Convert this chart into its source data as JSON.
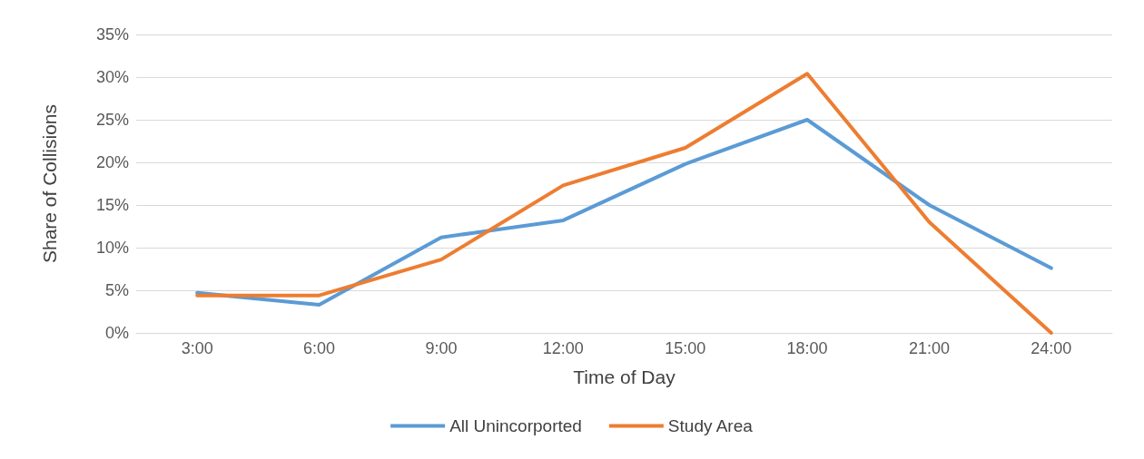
{
  "chart_data": {
    "type": "line",
    "xlabel": "Time of Day",
    "ylabel": "Share of Collisions",
    "categories": [
      "3:00",
      "6:00",
      "9:00",
      "12:00",
      "15:00",
      "18:00",
      "21:00",
      "24:00"
    ],
    "series": [
      {
        "name": "All Unincorported",
        "color": "#5b9bd5",
        "values": [
          4.7,
          3.3,
          11.2,
          13.2,
          19.8,
          25.0,
          15.0,
          7.6
        ]
      },
      {
        "name": "Study Area",
        "color": "#ed7d31",
        "values": [
          4.4,
          4.4,
          8.6,
          17.3,
          21.7,
          30.4,
          13.0,
          0
        ]
      }
    ],
    "ylim": [
      0,
      35
    ],
    "yticks": [
      {
        "value": 0,
        "label": "0%"
      },
      {
        "value": 5,
        "label": "5%"
      },
      {
        "value": 10,
        "label": "10%"
      },
      {
        "value": 15,
        "label": "15%"
      },
      {
        "value": 20,
        "label": "20%"
      },
      {
        "value": 25,
        "label": "25%"
      },
      {
        "value": 30,
        "label": "30%"
      },
      {
        "value": 35,
        "label": "35%"
      }
    ],
    "grid": "y",
    "legend": "bottom",
    "marker": "none",
    "line_style": "solid"
  }
}
